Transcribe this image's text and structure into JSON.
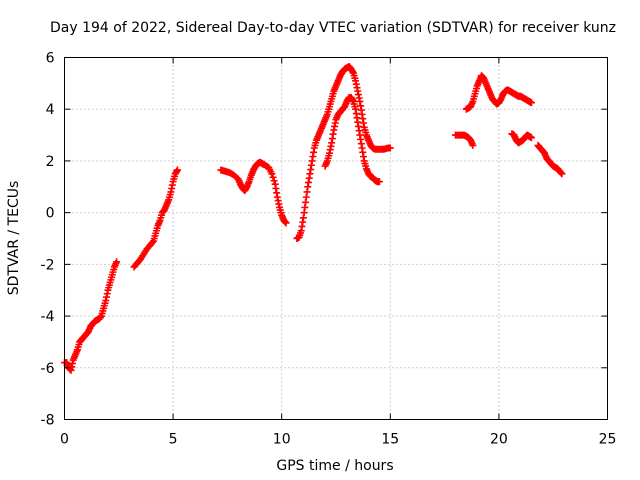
{
  "chart_data": {
    "type": "scatter",
    "title": "Day 194 of 2022, Sidereal Day-to-day VTEC variation (SDTVAR) for receiver kunz",
    "xlabel": "GPS time / hours",
    "ylabel": "SDTVAR / TECUs",
    "xlim": [
      0,
      25
    ],
    "ylim": [
      -8,
      6
    ],
    "xticks": [
      0,
      5,
      10,
      15,
      20,
      25
    ],
    "yticks": [
      -8,
      -6,
      -4,
      -2,
      0,
      2,
      4,
      6
    ],
    "grid": true,
    "legend": "none",
    "marker": "plus",
    "color": "#ff0000",
    "series": [
      {
        "points": [
          [
            0.0,
            -5.8
          ],
          [
            0.1,
            -5.8
          ],
          [
            0.2,
            -6.0
          ],
          [
            0.3,
            -6.1
          ],
          [
            0.4,
            -5.7
          ],
          [
            0.5,
            -5.5
          ],
          [
            0.6,
            -5.3
          ],
          [
            0.7,
            -5.0
          ],
          [
            0.8,
            -4.9
          ],
          [
            0.9,
            -4.8
          ],
          [
            1.0,
            -4.7
          ],
          [
            1.1,
            -4.6
          ],
          [
            1.2,
            -4.4
          ],
          [
            1.3,
            -4.3
          ],
          [
            1.4,
            -4.2
          ],
          [
            1.5,
            -4.15
          ],
          [
            1.6,
            -4.1
          ],
          [
            1.7,
            -4.0
          ],
          [
            1.8,
            -3.7
          ],
          [
            1.9,
            -3.4
          ],
          [
            2.0,
            -3.0
          ],
          [
            2.1,
            -2.7
          ],
          [
            2.2,
            -2.4
          ],
          [
            2.3,
            -2.1
          ],
          [
            2.4,
            -1.9
          ]
        ]
      },
      {
        "points": [
          [
            3.2,
            -2.1
          ],
          [
            3.35,
            -1.95
          ],
          [
            3.5,
            -1.8
          ],
          [
            3.65,
            -1.6
          ],
          [
            3.8,
            -1.4
          ],
          [
            3.95,
            -1.25
          ],
          [
            4.1,
            -1.1
          ],
          [
            4.2,
            -0.8
          ],
          [
            4.3,
            -0.5
          ],
          [
            4.4,
            -0.3
          ],
          [
            4.5,
            0.0
          ],
          [
            4.6,
            0.1
          ],
          [
            4.7,
            0.3
          ],
          [
            4.8,
            0.5
          ],
          [
            4.9,
            0.8
          ],
          [
            5.0,
            1.2
          ],
          [
            5.1,
            1.5
          ],
          [
            5.2,
            1.65
          ]
        ]
      },
      {
        "points": [
          [
            7.2,
            1.65
          ],
          [
            7.4,
            1.6
          ],
          [
            7.6,
            1.55
          ],
          [
            7.8,
            1.45
          ],
          [
            8.0,
            1.3
          ],
          [
            8.1,
            1.1
          ],
          [
            8.2,
            0.95
          ],
          [
            8.3,
            0.85
          ],
          [
            8.4,
            1.0
          ],
          [
            8.5,
            1.2
          ],
          [
            8.6,
            1.45
          ],
          [
            8.7,
            1.65
          ],
          [
            8.8,
            1.8
          ],
          [
            8.9,
            1.9
          ],
          [
            9.0,
            1.95
          ],
          [
            9.1,
            1.9
          ],
          [
            9.2,
            1.85
          ],
          [
            9.4,
            1.75
          ],
          [
            9.55,
            1.5
          ],
          [
            9.7,
            1.1
          ],
          [
            9.8,
            0.6
          ],
          [
            9.9,
            0.2
          ],
          [
            10.0,
            -0.1
          ],
          [
            10.1,
            -0.3
          ],
          [
            10.2,
            -0.4
          ]
        ]
      },
      {
        "points": [
          [
            10.7,
            -1.0
          ],
          [
            10.8,
            -0.95
          ],
          [
            10.9,
            -0.7
          ],
          [
            11.0,
            -0.2
          ],
          [
            11.1,
            0.4
          ],
          [
            11.2,
            1.0
          ],
          [
            11.3,
            1.5
          ],
          [
            11.4,
            2.0
          ],
          [
            11.5,
            2.5
          ],
          [
            11.6,
            2.8
          ],
          [
            11.7,
            3.0
          ],
          [
            11.8,
            3.2
          ],
          [
            11.9,
            3.4
          ],
          [
            12.0,
            3.6
          ],
          [
            12.1,
            3.8
          ],
          [
            12.2,
            4.1
          ],
          [
            12.3,
            4.4
          ],
          [
            12.4,
            4.7
          ],
          [
            12.5,
            4.9
          ],
          [
            12.6,
            5.1
          ],
          [
            12.7,
            5.3
          ],
          [
            12.8,
            5.45
          ],
          [
            12.9,
            5.55
          ],
          [
            13.0,
            5.6
          ],
          [
            13.1,
            5.65
          ],
          [
            13.2,
            5.55
          ],
          [
            13.3,
            5.4
          ],
          [
            13.4,
            5.1
          ],
          [
            13.5,
            4.7
          ],
          [
            13.6,
            4.3
          ],
          [
            13.7,
            3.8
          ],
          [
            13.8,
            3.3
          ],
          [
            13.9,
            3.0
          ],
          [
            14.0,
            2.8
          ],
          [
            14.1,
            2.6
          ],
          [
            14.2,
            2.5
          ],
          [
            14.3,
            2.45
          ],
          [
            14.5,
            2.45
          ],
          [
            14.7,
            2.45
          ],
          [
            14.9,
            2.5
          ],
          [
            15.0,
            2.5
          ]
        ]
      },
      {
        "points": [
          [
            12.0,
            1.8
          ],
          [
            12.1,
            2.0
          ],
          [
            12.2,
            2.3
          ],
          [
            12.3,
            2.7
          ],
          [
            12.4,
            3.2
          ],
          [
            12.5,
            3.6
          ],
          [
            12.6,
            3.8
          ],
          [
            12.7,
            3.9
          ],
          [
            12.8,
            4.0
          ],
          [
            12.9,
            4.1
          ],
          [
            13.0,
            4.3
          ],
          [
            13.1,
            4.45
          ],
          [
            13.2,
            4.45
          ],
          [
            13.3,
            4.3
          ],
          [
            13.4,
            4.0
          ],
          [
            13.5,
            3.5
          ],
          [
            13.6,
            3.0
          ],
          [
            13.7,
            2.5
          ],
          [
            13.8,
            2.0
          ],
          [
            13.9,
            1.7
          ],
          [
            14.0,
            1.5
          ],
          [
            14.1,
            1.4
          ],
          [
            14.2,
            1.35
          ],
          [
            14.3,
            1.25
          ],
          [
            14.4,
            1.2
          ],
          [
            14.5,
            1.2
          ]
        ]
      },
      {
        "points": [
          [
            18.0,
            3.0
          ],
          [
            18.2,
            3.0
          ],
          [
            18.4,
            3.0
          ],
          [
            18.5,
            2.95
          ],
          [
            18.6,
            2.9
          ],
          [
            18.7,
            2.8
          ],
          [
            18.8,
            2.6
          ]
        ]
      },
      {
        "points": [
          [
            18.5,
            4.0
          ],
          [
            18.6,
            4.05
          ],
          [
            18.7,
            4.1
          ],
          [
            18.8,
            4.3
          ],
          [
            18.9,
            4.6
          ],
          [
            19.0,
            4.9
          ],
          [
            19.1,
            5.1
          ],
          [
            19.2,
            5.3
          ],
          [
            19.3,
            5.2
          ],
          [
            19.4,
            5.0
          ],
          [
            19.5,
            4.8
          ],
          [
            19.6,
            4.6
          ],
          [
            19.7,
            4.4
          ],
          [
            19.8,
            4.3
          ],
          [
            19.9,
            4.2
          ],
          [
            20.0,
            4.25
          ],
          [
            20.1,
            4.4
          ],
          [
            20.2,
            4.6
          ],
          [
            20.3,
            4.7
          ],
          [
            20.4,
            4.75
          ],
          [
            20.5,
            4.7
          ],
          [
            20.6,
            4.65
          ],
          [
            20.7,
            4.6
          ],
          [
            20.8,
            4.55
          ],
          [
            20.9,
            4.5
          ],
          [
            21.0,
            4.5
          ],
          [
            21.1,
            4.45
          ],
          [
            21.2,
            4.4
          ],
          [
            21.3,
            4.35
          ],
          [
            21.4,
            4.3
          ],
          [
            21.5,
            4.25
          ]
        ]
      },
      {
        "points": [
          [
            20.6,
            3.05
          ],
          [
            20.7,
            3.0
          ],
          [
            20.8,
            2.8
          ],
          [
            20.9,
            2.7
          ],
          [
            21.0,
            2.75
          ],
          [
            21.1,
            2.8
          ],
          [
            21.2,
            2.9
          ],
          [
            21.3,
            3.0
          ],
          [
            21.4,
            2.95
          ],
          [
            21.5,
            2.9
          ]
        ]
      },
      {
        "points": [
          [
            21.8,
            2.6
          ],
          [
            21.9,
            2.5
          ],
          [
            22.0,
            2.4
          ],
          [
            22.1,
            2.3
          ],
          [
            22.2,
            2.1
          ],
          [
            22.3,
            2.0
          ],
          [
            22.4,
            1.9
          ],
          [
            22.5,
            1.8
          ],
          [
            22.6,
            1.75
          ],
          [
            22.7,
            1.7
          ],
          [
            22.8,
            1.6
          ],
          [
            22.9,
            1.5
          ]
        ]
      }
    ]
  }
}
